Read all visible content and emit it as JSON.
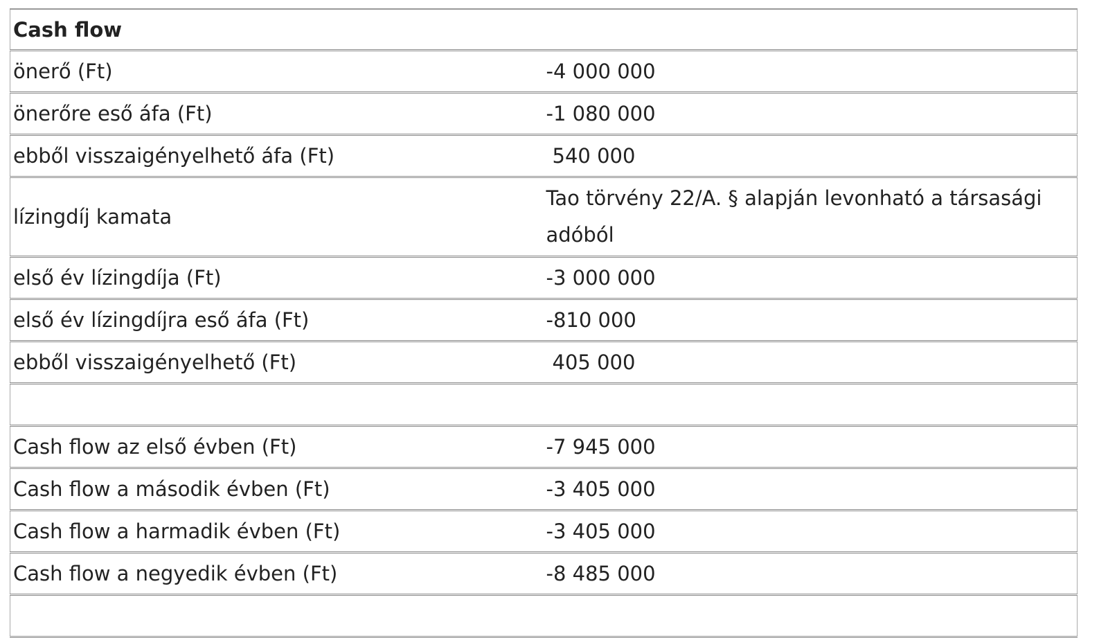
{
  "table": {
    "title": "Cash flow",
    "rows": [
      [
        "önerő (Ft)",
        "-4 000 000"
      ],
      [
        "önerőre eső áfa (Ft)",
        "-1 080 000"
      ],
      [
        "ebből visszaigényelhető áfa (Ft)",
        "540 000"
      ],
      [
        "lízingdíj kamata",
        "Tao törvény 22/A. § alapján levonható a társasági adóból"
      ],
      [
        "első év lízingdíja (Ft)",
        "-3 000 000"
      ],
      [
        "első év lízingdíjra eső áfa (Ft)",
        "-810 000"
      ],
      [
        "ebből visszaigényelhető (Ft)",
        "405 000"
      ],
      [
        "Cash flow az első évben (Ft)",
        "-7 945 000"
      ],
      [
        "Cash flow a második évben (Ft)",
        "-3 405 000"
      ],
      [
        "Cash flow a harmadik évben (Ft)",
        "-3 405 000"
      ],
      [
        "Cash flow a negyedik évben (Ft)",
        "-8 485 000"
      ]
    ]
  }
}
